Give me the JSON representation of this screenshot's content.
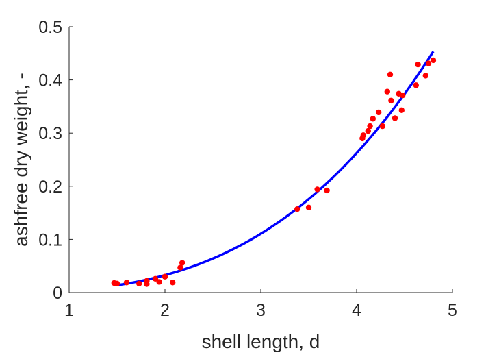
{
  "chart_data": {
    "type": "scatter",
    "xlabel": "shell length, d",
    "ylabel": "ashfree dry weight, -",
    "xlim": [
      1,
      5
    ],
    "ylim": [
      0,
      0.5
    ],
    "xticks": [
      1,
      2,
      3,
      4,
      5
    ],
    "yticks": [
      0,
      0.1,
      0.2,
      0.3,
      0.4,
      0.5
    ],
    "xtick_labels": [
      "1",
      "2",
      "3",
      "4",
      "5"
    ],
    "ytick_labels": [
      "0",
      "0.1",
      "0.2",
      "0.3",
      "0.4",
      "0.5"
    ],
    "grid": false,
    "series": [
      {
        "kind": "points",
        "color": "#ff0000",
        "points": [
          [
            1.47,
            0.018
          ],
          [
            1.5,
            0.017
          ],
          [
            1.6,
            0.019
          ],
          [
            1.73,
            0.017
          ],
          [
            1.81,
            0.016
          ],
          [
            1.81,
            0.022
          ],
          [
            1.9,
            0.026
          ],
          [
            1.94,
            0.02
          ],
          [
            2.0,
            0.03
          ],
          [
            2.08,
            0.019
          ],
          [
            2.16,
            0.047
          ],
          [
            2.18,
            0.056
          ],
          [
            3.38,
            0.157
          ],
          [
            3.5,
            0.16
          ],
          [
            3.59,
            0.194
          ],
          [
            3.69,
            0.192
          ],
          [
            4.06,
            0.29
          ],
          [
            4.07,
            0.296
          ],
          [
            4.12,
            0.304
          ],
          [
            4.14,
            0.313
          ],
          [
            4.17,
            0.327
          ],
          [
            4.23,
            0.339
          ],
          [
            4.27,
            0.313
          ],
          [
            4.32,
            0.378
          ],
          [
            4.35,
            0.41
          ],
          [
            4.36,
            0.361
          ],
          [
            4.4,
            0.328
          ],
          [
            4.44,
            0.374
          ],
          [
            4.47,
            0.343
          ],
          [
            4.48,
            0.371
          ],
          [
            4.62,
            0.39
          ],
          [
            4.64,
            0.429
          ],
          [
            4.72,
            0.408
          ],
          [
            4.75,
            0.431
          ],
          [
            4.8,
            0.437
          ]
        ]
      },
      {
        "kind": "fit-curve",
        "color": "#0000ff",
        "x_range": [
          1.5,
          4.8
        ],
        "coef": 0.0041,
        "exponent": 3
      }
    ]
  }
}
